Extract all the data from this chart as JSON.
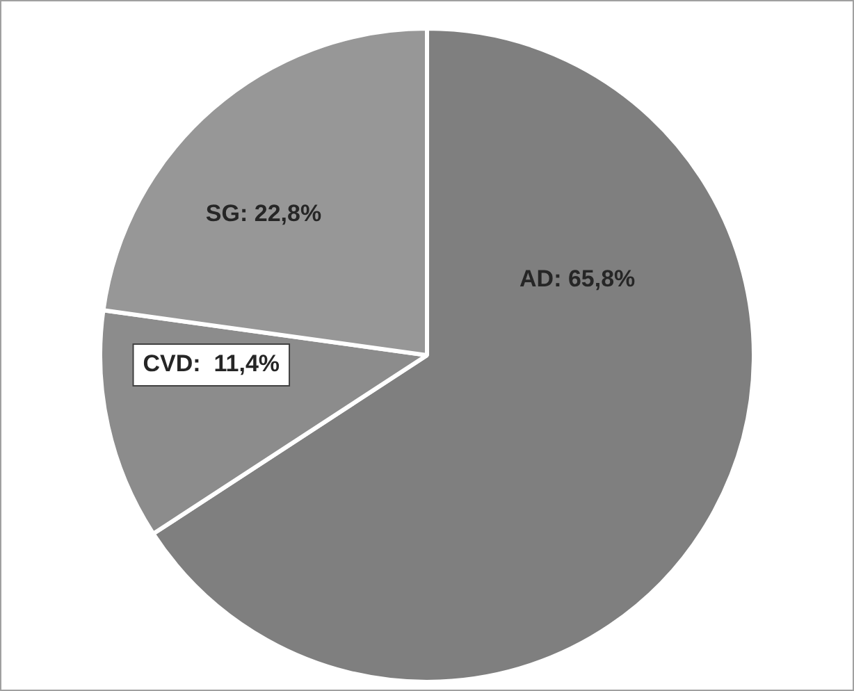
{
  "chart_data": {
    "type": "pie",
    "categories": [
      "AD",
      "CVD",
      "SG"
    ],
    "values": [
      65.8,
      11.4,
      22.8
    ],
    "colors": [
      "#7f7f7f",
      "#8c8c8c",
      "#979797"
    ],
    "value_labels": [
      ": 65,8%",
      ":  11,4%",
      ": 22,8%"
    ],
    "legend": false
  }
}
